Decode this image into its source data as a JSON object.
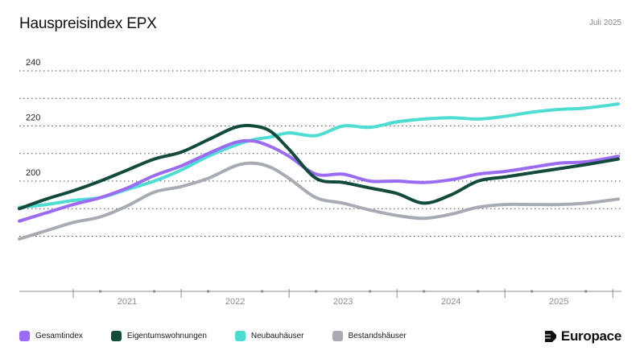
{
  "header": {
    "title": "Hauspreisindex EPX",
    "date": "Juli 2025"
  },
  "brand": {
    "name": "Europace"
  },
  "legend": [
    {
      "label": "Gesamtindex",
      "color": "#9b6cf2"
    },
    {
      "label": "Eigentumswohnungen",
      "color": "#124a3c"
    },
    {
      "label": "Neubauhäuser",
      "color": "#4fdcd2"
    },
    {
      "label": "Bestandshäuser",
      "color": "#a8abb3"
    }
  ],
  "chart_data": {
    "type": "line",
    "title": "Hauspreisindex EPX",
    "xlabel": "",
    "ylabel": "",
    "xlim": [
      2020.0,
      2025.58
    ],
    "ylim": [
      160,
      240
    ],
    "yticks": [
      180,
      190,
      200,
      210,
      220,
      230,
      240
    ],
    "ytick_labels": [
      {
        "value": 200,
        "label": "200"
      },
      {
        "value": 220,
        "label": "220"
      },
      {
        "value": 240,
        "label": "240"
      }
    ],
    "x_year_labels": [
      {
        "value": 2021,
        "label": "2021"
      },
      {
        "value": 2022,
        "label": "2022"
      },
      {
        "value": 2023,
        "label": "2023"
      },
      {
        "value": 2024,
        "label": "2024"
      },
      {
        "value": 2025,
        "label": "2025"
      }
    ],
    "x_year_boundaries": [
      2020.5,
      2021.5,
      2022.5,
      2023.5,
      2024.5,
      2025.5
    ],
    "x_quarter_ticks": [
      2020.75,
      2021.25,
      2021.75,
      2022.25,
      2022.75,
      2023.25,
      2023.75,
      2024.25,
      2024.75,
      2025.25
    ],
    "grid": true,
    "legend_position": "bottom",
    "series": [
      {
        "name": "Gesamtindex",
        "color": "#9b6cf2",
        "x": [
          2020.0,
          2020.25,
          2020.5,
          2020.75,
          2021.0,
          2021.25,
          2021.5,
          2021.75,
          2022.0,
          2022.17,
          2022.33,
          2022.5,
          2022.75,
          2023.0,
          2023.25,
          2023.5,
          2023.75,
          2024.0,
          2024.25,
          2024.5,
          2024.75,
          2025.0,
          2025.25,
          2025.55
        ],
        "y": [
          185.5,
          188.5,
          191.5,
          194,
          197.5,
          202,
          205.5,
          210,
          214,
          214.5,
          212.5,
          209,
          202.5,
          202.5,
          200,
          200,
          199.5,
          200.5,
          202.5,
          203.5,
          205,
          206.5,
          207,
          209
        ]
      },
      {
        "name": "Eigentumswohnungen",
        "color": "#124a3c",
        "x": [
          2020.0,
          2020.25,
          2020.5,
          2020.75,
          2021.0,
          2021.25,
          2021.5,
          2021.75,
          2022.0,
          2022.17,
          2022.33,
          2022.5,
          2022.75,
          2023.0,
          2023.25,
          2023.5,
          2023.75,
          2024.0,
          2024.25,
          2024.5,
          2024.75,
          2025.0,
          2025.25,
          2025.55
        ],
        "y": [
          190,
          193.5,
          196.5,
          200,
          204,
          208,
          210.5,
          215,
          219.5,
          220,
          218,
          211.5,
          201,
          199.5,
          197.5,
          195.5,
          192,
          195,
          200,
          201.5,
          203,
          204.5,
          206,
          208
        ]
      },
      {
        "name": "Neubauhäuser",
        "color": "#4fdcd2",
        "x": [
          2020.0,
          2020.25,
          2020.5,
          2020.75,
          2021.0,
          2021.25,
          2021.5,
          2021.75,
          2022.0,
          2022.17,
          2022.33,
          2022.5,
          2022.75,
          2023.0,
          2023.25,
          2023.5,
          2023.75,
          2024.0,
          2024.25,
          2024.5,
          2024.75,
          2025.0,
          2025.25,
          2025.55
        ],
        "y": [
          190.5,
          191.5,
          193,
          194,
          197,
          200,
          204,
          209,
          213,
          215,
          216,
          217.5,
          216.5,
          220,
          219.5,
          221.5,
          222.5,
          223,
          222.5,
          223.5,
          225,
          226,
          226.5,
          228
        ]
      },
      {
        "name": "Bestandshäuser",
        "color": "#a8abb3",
        "x": [
          2020.0,
          2020.25,
          2020.5,
          2020.75,
          2021.0,
          2021.25,
          2021.5,
          2021.75,
          2022.0,
          2022.17,
          2022.33,
          2022.5,
          2022.75,
          2023.0,
          2023.25,
          2023.5,
          2023.75,
          2024.0,
          2024.25,
          2024.5,
          2024.75,
          2025.0,
          2025.25,
          2025.55
        ],
        "y": [
          179,
          182,
          185,
          187,
          191,
          196,
          198,
          201,
          205.5,
          206.5,
          205,
          201,
          194,
          192,
          189.5,
          187.5,
          186.5,
          188,
          190.5,
          191.5,
          191.5,
          191.5,
          192,
          193.5
        ]
      }
    ]
  }
}
